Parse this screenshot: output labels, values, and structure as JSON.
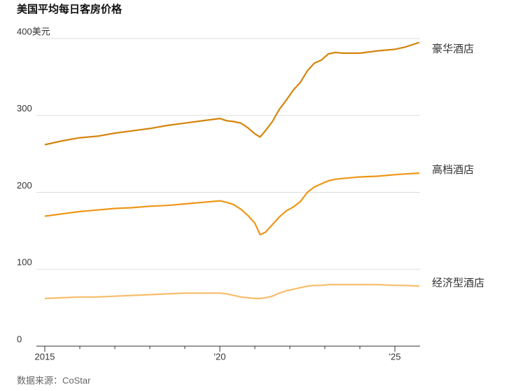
{
  "chart_data": {
    "type": "line",
    "title": "美国平均每日客房价格",
    "source": "数据来源：CoStar",
    "x": [
      2015,
      2015.5,
      2016,
      2016.5,
      2017,
      2017.5,
      2018,
      2018.5,
      2019,
      2019.5,
      2020,
      2020.2,
      2020.4,
      2020.6,
      2020.8,
      2021,
      2021.15,
      2021.3,
      2021.5,
      2021.7,
      2021.9,
      2022.1,
      2022.3,
      2022.5,
      2022.7,
      2022.9,
      2023.1,
      2023.3,
      2023.5,
      2024,
      2024.5,
      2025,
      2025.3,
      2025.7
    ],
    "series": [
      {
        "name": "豪华酒店",
        "color": "#d4850c",
        "values": [
          262,
          267,
          271,
          273,
          277,
          280,
          283,
          287,
          290,
          293,
          296,
          293,
          292,
          290,
          284,
          276,
          272,
          280,
          292,
          308,
          320,
          333,
          343,
          358,
          368,
          372,
          380,
          382,
          381,
          381,
          384,
          386,
          389,
          395
        ]
      },
      {
        "name": "高档酒店",
        "color": "#ee9616",
        "values": [
          169,
          172,
          175,
          177,
          179,
          180,
          182,
          183,
          185,
          187,
          189,
          187,
          184,
          178,
          170,
          160,
          145,
          148,
          158,
          168,
          176,
          181,
          188,
          200,
          207,
          211,
          215,
          217,
          218,
          220,
          221,
          223,
          224,
          225
        ]
      },
      {
        "name": "经济型酒店",
        "color": "#f8bd6a",
        "values": [
          62,
          63,
          64,
          64,
          65,
          66,
          67,
          68,
          69,
          69,
          69,
          68,
          66,
          64,
          63,
          62,
          62,
          63,
          65,
          69,
          72,
          74,
          76,
          78,
          79,
          79,
          80,
          80,
          80,
          80,
          80,
          79,
          79,
          78
        ]
      }
    ],
    "xlim": [
      2015,
      2025.7
    ],
    "xticks": [
      2015,
      {
        "value": 2020,
        "label": "'20"
      },
      {
        "value": 2025,
        "label": "'25"
      }
    ],
    "xminorticks": [
      2016,
      2017,
      2018,
      2019,
      2021,
      2022,
      2023,
      2024
    ],
    "ylim": [
      0,
      400
    ],
    "yticks": [
      0,
      100,
      200,
      300,
      {
        "value": 400,
        "label": "400美元"
      }
    ],
    "grid": true
  }
}
